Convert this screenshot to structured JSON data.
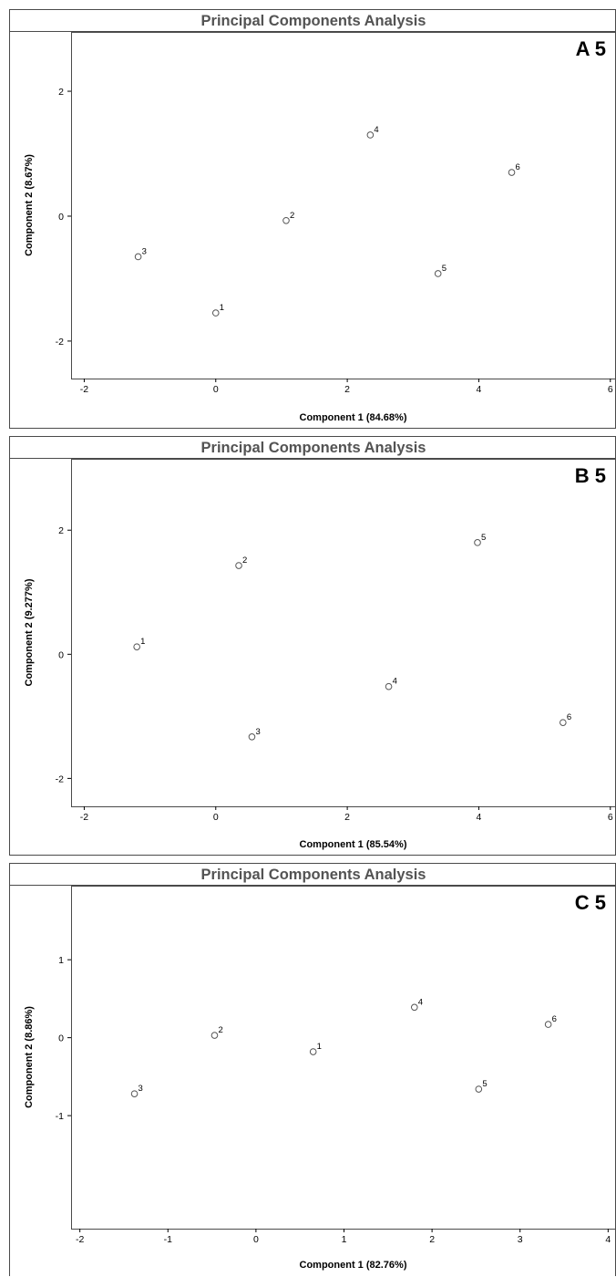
{
  "chart_data": [
    {
      "type": "scatter",
      "title": "Principal Components Analysis",
      "panel_label": "A 5",
      "xlabel": "Component 1 (84.68%)",
      "ylabel": "Component 2 (8.67%)",
      "xlim": [
        -2.2,
        6.1
      ],
      "ylim": [
        -2.6,
        2.95
      ],
      "xticks": [
        "-2",
        "0",
        "2",
        "4",
        "6"
      ],
      "yticks": [
        "-2",
        "0",
        "2"
      ],
      "points": [
        {
          "label": "1",
          "x": 0.0,
          "y": -1.55
        },
        {
          "label": "2",
          "x": 1.07,
          "y": -0.07
        },
        {
          "label": "3",
          "x": -1.18,
          "y": -0.65
        },
        {
          "label": "4",
          "x": 2.35,
          "y": 1.3
        },
        {
          "label": "5",
          "x": 3.38,
          "y": -0.92
        },
        {
          "label": "6",
          "x": 4.5,
          "y": 0.7
        }
      ]
    },
    {
      "type": "scatter",
      "title": "Principal Components Analysis",
      "panel_label": "B 5",
      "xlabel": "Component 1 (85.54%)",
      "ylabel": "Component 2 (9.277%)",
      "xlim": [
        -2.2,
        6.1
      ],
      "ylim": [
        -2.45,
        3.15
      ],
      "xticks": [
        "-2",
        "0",
        "2",
        "4",
        "6"
      ],
      "yticks": [
        "-2",
        "0",
        "2"
      ],
      "points": [
        {
          "label": "1",
          "x": -1.2,
          "y": 0.12
        },
        {
          "label": "2",
          "x": 0.35,
          "y": 1.43
        },
        {
          "label": "3",
          "x": 0.55,
          "y": -1.33
        },
        {
          "label": "4",
          "x": 2.63,
          "y": -0.52
        },
        {
          "label": "5",
          "x": 3.98,
          "y": 1.8
        },
        {
          "label": "6",
          "x": 5.28,
          "y": -1.1
        }
      ]
    },
    {
      "type": "scatter",
      "title": "Principal Components Analysis",
      "panel_label": "C 5",
      "xlabel": "Component 1 (82.76%)",
      "ylabel": "Component 2 (8.86%)",
      "xlim": [
        -2.1,
        4.1
      ],
      "ylim": [
        -2.45,
        1.95
      ],
      "xticks": [
        "-2",
        "-1",
        "0",
        "1",
        "2",
        "3",
        "4"
      ],
      "yticks": [
        "-1",
        "0",
        "1"
      ],
      "points": [
        {
          "label": "1",
          "x": 0.65,
          "y": -0.18
        },
        {
          "label": "2",
          "x": -0.47,
          "y": 0.03
        },
        {
          "label": "3",
          "x": -1.38,
          "y": -0.72
        },
        {
          "label": "4",
          "x": 1.8,
          "y": 0.39
        },
        {
          "label": "5",
          "x": 2.53,
          "y": -0.66
        },
        {
          "label": "6",
          "x": 3.32,
          "y": 0.17
        }
      ]
    }
  ]
}
